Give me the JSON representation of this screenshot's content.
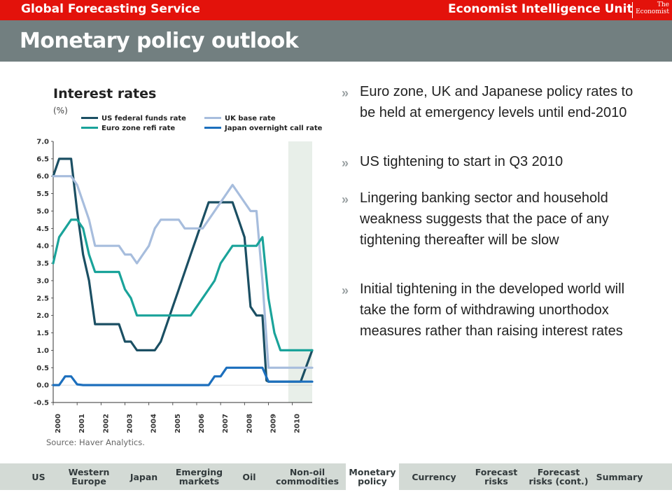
{
  "header": {
    "service": "Global Forecasting Service",
    "eiu": "Economist Intelligence Unit",
    "logo_line1": "The",
    "logo_line2": "Economist"
  },
  "title": "Monetary policy outlook",
  "chart": {
    "title": "Interest rates",
    "unit": "(%)",
    "source": "Source: Haver Analytics."
  },
  "chart_data": {
    "type": "line",
    "title": "Interest rates",
    "ylabel": "(%)",
    "ylim": [
      -0.5,
      7.0
    ],
    "xlim": [
      2000,
      2010.83
    ],
    "y_ticks": [
      "7.0",
      "6.5",
      "6.0",
      "5.5",
      "5.0",
      "4.5",
      "4.0",
      "3.5",
      "3.0",
      "2.5",
      "2.0",
      "1.5",
      "1.0",
      "0.5",
      "0.0",
      "-0.5"
    ],
    "x_ticks": [
      "2000",
      "2001",
      "2002",
      "2003",
      "2004",
      "2005",
      "2006",
      "2007",
      "2008",
      "2009",
      "2010"
    ],
    "shaded_forecast_from": 2009.83,
    "legend_placement": "top",
    "grid": false,
    "series": [
      {
        "name": "US federal funds rate",
        "color": "#1b4f63",
        "points": [
          [
            2000.0,
            6.0
          ],
          [
            2000.25,
            6.5
          ],
          [
            2000.5,
            6.5
          ],
          [
            2000.75,
            6.5
          ],
          [
            2001.0,
            5.0
          ],
          [
            2001.25,
            3.75
          ],
          [
            2001.5,
            3.0
          ],
          [
            2001.75,
            1.75
          ],
          [
            2002.0,
            1.75
          ],
          [
            2002.5,
            1.75
          ],
          [
            2002.75,
            1.75
          ],
          [
            2003.0,
            1.25
          ],
          [
            2003.25,
            1.25
          ],
          [
            2003.5,
            1.0
          ],
          [
            2003.75,
            1.0
          ],
          [
            2004.0,
            1.0
          ],
          [
            2004.25,
            1.0
          ],
          [
            2004.5,
            1.25
          ],
          [
            2004.75,
            1.75
          ],
          [
            2005.0,
            2.25
          ],
          [
            2005.25,
            2.75
          ],
          [
            2005.5,
            3.25
          ],
          [
            2005.75,
            3.75
          ],
          [
            2006.0,
            4.25
          ],
          [
            2006.25,
            4.75
          ],
          [
            2006.5,
            5.25
          ],
          [
            2006.75,
            5.25
          ],
          [
            2007.0,
            5.25
          ],
          [
            2007.25,
            5.25
          ],
          [
            2007.5,
            5.25
          ],
          [
            2007.75,
            4.75
          ],
          [
            2008.0,
            4.25
          ],
          [
            2008.25,
            2.25
          ],
          [
            2008.5,
            2.0
          ],
          [
            2008.75,
            2.0
          ],
          [
            2008.92,
            0.13
          ],
          [
            2009.0,
            0.1
          ],
          [
            2009.5,
            0.1
          ],
          [
            2010.0,
            0.1
          ],
          [
            2010.35,
            0.1
          ],
          [
            2010.83,
            1.0
          ]
        ]
      },
      {
        "name": "UK base rate",
        "color": "#a7bddd",
        "points": [
          [
            2000.0,
            6.0
          ],
          [
            2000.75,
            6.0
          ],
          [
            2001.0,
            5.75
          ],
          [
            2001.25,
            5.25
          ],
          [
            2001.5,
            4.75
          ],
          [
            2001.75,
            4.0
          ],
          [
            2002.0,
            4.0
          ],
          [
            2002.5,
            4.0
          ],
          [
            2002.75,
            4.0
          ],
          [
            2003.0,
            3.75
          ],
          [
            2003.25,
            3.75
          ],
          [
            2003.5,
            3.5
          ],
          [
            2003.75,
            3.75
          ],
          [
            2004.0,
            4.0
          ],
          [
            2004.25,
            4.5
          ],
          [
            2004.5,
            4.75
          ],
          [
            2004.75,
            4.75
          ],
          [
            2005.0,
            4.75
          ],
          [
            2005.25,
            4.75
          ],
          [
            2005.5,
            4.5
          ],
          [
            2005.75,
            4.5
          ],
          [
            2006.0,
            4.5
          ],
          [
            2006.25,
            4.5
          ],
          [
            2006.5,
            4.75
          ],
          [
            2006.75,
            5.0
          ],
          [
            2007.0,
            5.25
          ],
          [
            2007.25,
            5.5
          ],
          [
            2007.5,
            5.75
          ],
          [
            2007.75,
            5.5
          ],
          [
            2008.0,
            5.25
          ],
          [
            2008.25,
            5.0
          ],
          [
            2008.5,
            5.0
          ],
          [
            2008.75,
            3.0
          ],
          [
            2009.0,
            0.5
          ],
          [
            2009.5,
            0.5
          ],
          [
            2010.0,
            0.5
          ],
          [
            2010.5,
            0.5
          ],
          [
            2010.83,
            0.5
          ]
        ]
      },
      {
        "name": "Euro zone refi rate",
        "color": "#1aa39a",
        "points": [
          [
            2000.0,
            3.5
          ],
          [
            2000.25,
            4.25
          ],
          [
            2000.5,
            4.5
          ],
          [
            2000.75,
            4.75
          ],
          [
            2001.0,
            4.75
          ],
          [
            2001.25,
            4.5
          ],
          [
            2001.5,
            3.75
          ],
          [
            2001.75,
            3.25
          ],
          [
            2002.0,
            3.25
          ],
          [
            2002.5,
            3.25
          ],
          [
            2002.75,
            3.25
          ],
          [
            2003.0,
            2.75
          ],
          [
            2003.25,
            2.5
          ],
          [
            2003.5,
            2.0
          ],
          [
            2004.0,
            2.0
          ],
          [
            2005.0,
            2.0
          ],
          [
            2005.5,
            2.0
          ],
          [
            2005.75,
            2.0
          ],
          [
            2006.0,
            2.25
          ],
          [
            2006.25,
            2.5
          ],
          [
            2006.5,
            2.75
          ],
          [
            2006.75,
            3.0
          ],
          [
            2007.0,
            3.5
          ],
          [
            2007.25,
            3.75
          ],
          [
            2007.5,
            4.0
          ],
          [
            2008.0,
            4.0
          ],
          [
            2008.25,
            4.0
          ],
          [
            2008.5,
            4.0
          ],
          [
            2008.75,
            4.25
          ],
          [
            2009.0,
            2.5
          ],
          [
            2009.25,
            1.5
          ],
          [
            2009.5,
            1.0
          ],
          [
            2010.0,
            1.0
          ],
          [
            2010.5,
            1.0
          ],
          [
            2010.83,
            1.0
          ]
        ]
      },
      {
        "name": "Japan overnight call rate",
        "color": "#1c6fbd",
        "points": [
          [
            2000.0,
            0.0
          ],
          [
            2000.25,
            0.0
          ],
          [
            2000.5,
            0.25
          ],
          [
            2000.75,
            0.25
          ],
          [
            2001.0,
            0.02
          ],
          [
            2001.25,
            0.0
          ],
          [
            2002.0,
            0.0
          ],
          [
            2003.0,
            0.0
          ],
          [
            2004.0,
            0.0
          ],
          [
            2005.0,
            0.0
          ],
          [
            2006.0,
            0.0
          ],
          [
            2006.5,
            0.0
          ],
          [
            2006.75,
            0.25
          ],
          [
            2007.0,
            0.25
          ],
          [
            2007.25,
            0.5
          ],
          [
            2007.75,
            0.5
          ],
          [
            2008.0,
            0.5
          ],
          [
            2008.5,
            0.5
          ],
          [
            2008.75,
            0.5
          ],
          [
            2009.0,
            0.1
          ],
          [
            2009.5,
            0.1
          ],
          [
            2010.0,
            0.1
          ],
          [
            2010.5,
            0.1
          ],
          [
            2010.83,
            0.1
          ]
        ]
      }
    ]
  },
  "bullets": [
    "Euro zone, UK and Japanese policy rates to be held at emergency levels until end-2010",
    "US tightening to start in Q3 2010",
    "Lingering banking sector and household weakness suggests that the pace of any tightening thereafter will be slow",
    "Initial tightening in the developed world will take the form of withdrawing unorthodox measures rather than raising interest rates"
  ],
  "bullet_glyph": "»",
  "nav": [
    {
      "label": "US",
      "active": false
    },
    {
      "label": "Western Europe",
      "active": false
    },
    {
      "label": "Japan",
      "active": false
    },
    {
      "label": "Emerging markets",
      "active": false
    },
    {
      "label": "Oil",
      "active": false
    },
    {
      "label": "Non-oil commodities",
      "active": false
    },
    {
      "label": "Monetary policy",
      "active": true
    },
    {
      "label": "Currency",
      "active": false
    },
    {
      "label": "Forecast risks",
      "active": false
    },
    {
      "label": "Forecast risks (cont.)",
      "active": false
    },
    {
      "label": "Summary",
      "active": false
    }
  ],
  "colors": {
    "brand_red": "#e3120b",
    "title_grey": "#727f80",
    "nav_bg": "#d3dad5",
    "forecast_shade": "#e8efe9"
  }
}
